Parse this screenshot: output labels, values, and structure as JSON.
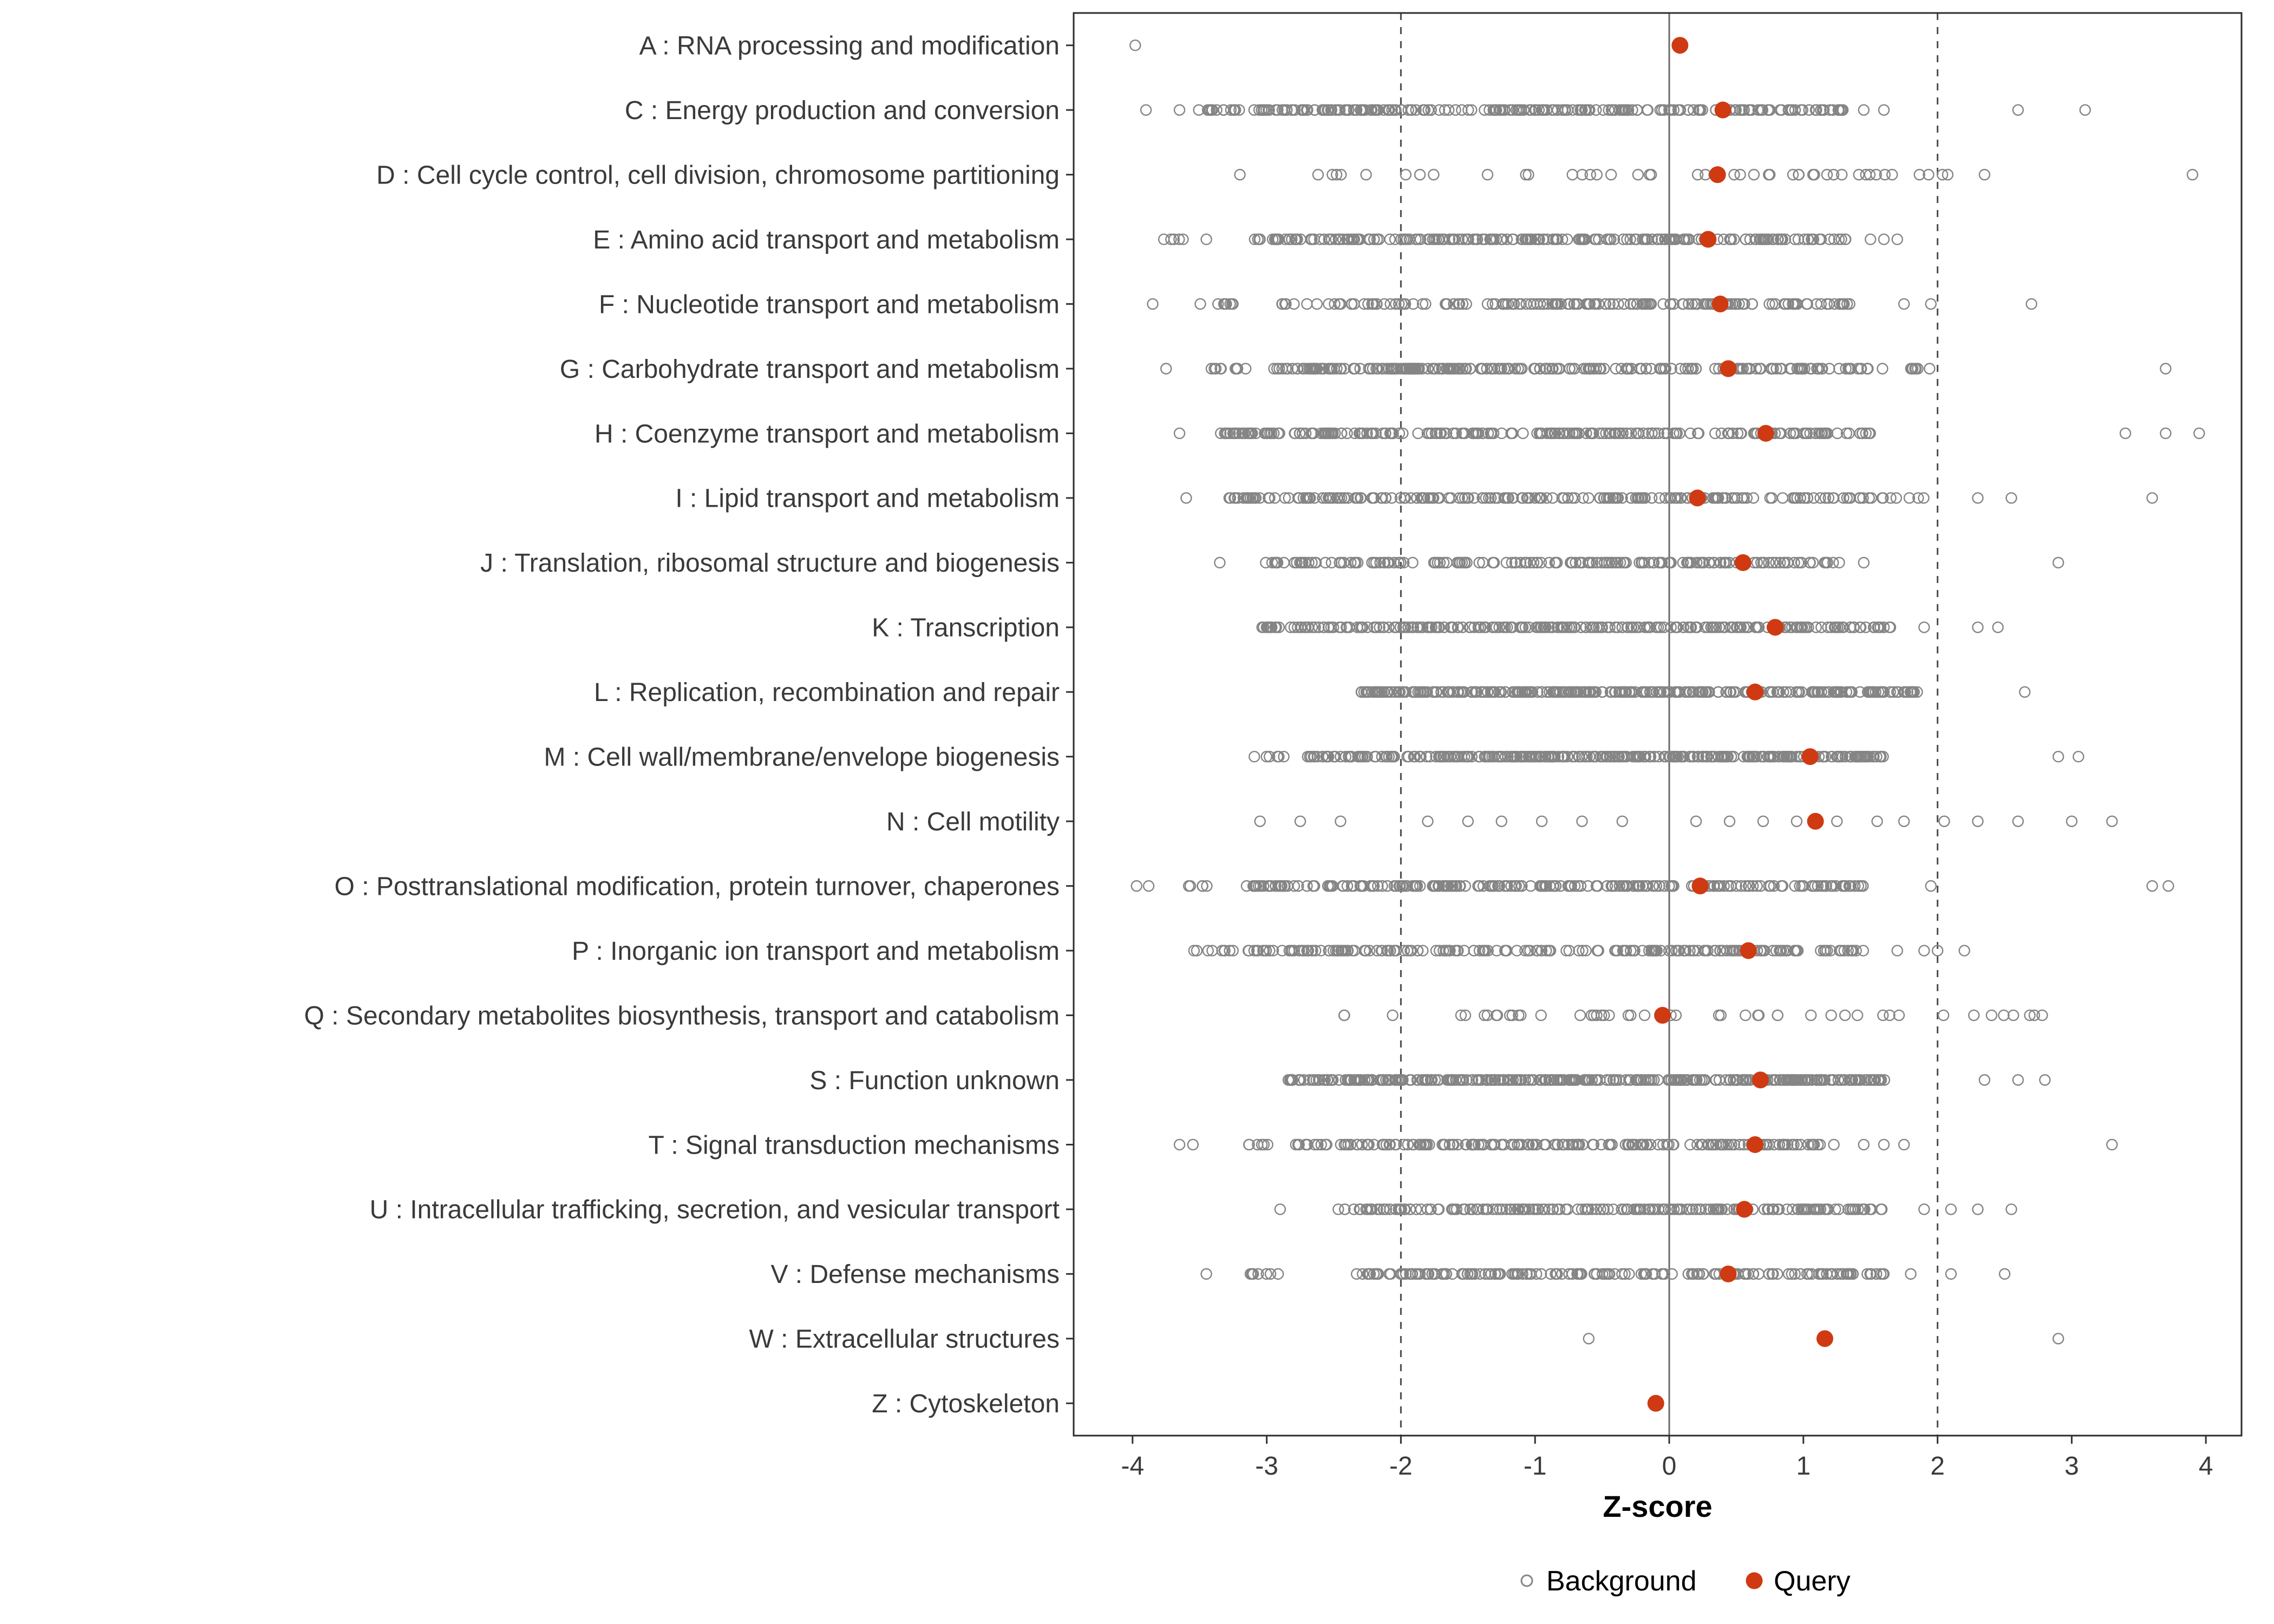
{
  "figure": {
    "xlabel": "Z-score",
    "legend": {
      "background_label": "Background",
      "query_label": "Query"
    }
  },
  "chart_data": {
    "type": "scatter",
    "title": "",
    "xlabel": "Z-score",
    "ylabel": "",
    "xlim": [
      -4.45,
      4.27
    ],
    "x_ticks": [
      -4,
      -3,
      -2,
      -1,
      0,
      1,
      2,
      3,
      4
    ],
    "grid": false,
    "reference_lines": {
      "solid": [
        0
      ],
      "dashed": [
        -2,
        2
      ]
    },
    "legend_position": "bottom",
    "legend": [
      {
        "label": "Background",
        "marker": "open-circle",
        "color": "#858585"
      },
      {
        "label": "Query",
        "marker": "filled-circle",
        "color": "#cf3a13"
      }
    ],
    "colors": {
      "background_marker": "#858585",
      "query_marker": "#cf3a13",
      "dashed_line": "#4d4d4d",
      "zero_line": "#6b6b6b",
      "panel_border": "#2b2b2b",
      "axis_text": "#3a3a3a",
      "tick_mark": "#333333",
      "label_text": "#000000"
    },
    "categories": [
      {
        "code": "A",
        "label": "A : RNA processing and modification",
        "query_z": 0.08,
        "background": {
          "dense_ranges": [],
          "points": [
            -3.98
          ]
        }
      },
      {
        "code": "C",
        "label": "C : Energy production and conversion",
        "query_z": 0.4,
        "background": {
          "dense_ranges": [
            {
              "from": -3.55,
              "to": -3.2,
              "approx_count": 14
            },
            {
              "from": -3.1,
              "to": 1.3,
              "approx_count": 240
            }
          ],
          "points": [
            -3.9,
            -3.65,
            1.45,
            1.6,
            2.6,
            3.1
          ]
        }
      },
      {
        "code": "D",
        "label": "D : Cell cycle control, cell division, chromosome partitioning",
        "query_z": 0.36,
        "background": {
          "dense_ranges": [
            {
              "from": -2.7,
              "to": 2.1,
              "approx_count": 46
            }
          ],
          "points": [
            -3.2,
            2.35,
            3.9
          ]
        }
      },
      {
        "code": "E",
        "label": "E : Amino acid transport and metabolism",
        "query_z": 0.29,
        "background": {
          "dense_ranges": [
            {
              "from": -3.88,
              "to": -3.6,
              "approx_count": 5
            },
            {
              "from": -3.1,
              "to": 1.15,
              "approx_count": 230
            },
            {
              "from": 1.15,
              "to": 1.35,
              "approx_count": 6
            }
          ],
          "points": [
            -3.45,
            1.5,
            1.6,
            1.7
          ]
        }
      },
      {
        "code": "F",
        "label": "F : Nucleotide transport and metabolism",
        "query_z": 0.38,
        "background": {
          "dense_ranges": [
            {
              "from": -3.5,
              "to": -3.25,
              "approx_count": 8
            },
            {
              "from": -2.95,
              "to": 1.4,
              "approx_count": 170
            }
          ],
          "points": [
            -3.85,
            1.75,
            1.95,
            2.7
          ]
        }
      },
      {
        "code": "G",
        "label": "G : Carbohydrate transport and metabolism",
        "query_z": 0.44,
        "background": {
          "dense_ranges": [
            {
              "from": -3.45,
              "to": -3.15,
              "approx_count": 10
            },
            {
              "from": -3.0,
              "to": 1.5,
              "approx_count": 240
            },
            {
              "from": 1.55,
              "to": 1.95,
              "approx_count": 8
            }
          ],
          "points": [
            -3.75,
            3.7
          ]
        }
      },
      {
        "code": "H",
        "label": "H : Coenzyme transport and metabolism",
        "query_z": 0.72,
        "background": {
          "dense_ranges": [
            {
              "from": -3.35,
              "to": 1.5,
              "approx_count": 220
            }
          ],
          "points": [
            -3.65,
            3.4,
            3.7,
            3.95
          ]
        }
      },
      {
        "code": "I",
        "label": "I : Lipid transport and metabolism",
        "query_z": 0.21,
        "background": {
          "dense_ranges": [
            {
              "from": -3.3,
              "to": 1.6,
              "approx_count": 210
            },
            {
              "from": 1.65,
              "to": 1.9,
              "approx_count": 5
            }
          ],
          "points": [
            -3.6,
            2.3,
            2.55,
            3.6
          ]
        }
      },
      {
        "code": "J",
        "label": "J : Translation, ribosomal structure and biogenesis",
        "query_z": 0.55,
        "background": {
          "dense_ranges": [
            {
              "from": -3.05,
              "to": 1.3,
              "approx_count": 175
            }
          ],
          "points": [
            -3.35,
            1.45,
            2.9
          ]
        }
      },
      {
        "code": "K",
        "label": "K : Transcription",
        "query_z": 0.79,
        "background": {
          "dense_ranges": [
            {
              "from": -3.05,
              "to": 1.65,
              "approx_count": 260
            }
          ],
          "points": [
            1.9,
            2.3,
            2.45
          ]
        }
      },
      {
        "code": "L",
        "label": "L : Replication, recombination and repair",
        "query_z": 0.64,
        "background": {
          "dense_ranges": [
            {
              "from": -2.3,
              "to": 1.85,
              "approx_count": 300
            }
          ],
          "points": [
            2.65
          ]
        }
      },
      {
        "code": "M",
        "label": "M : Cell wall/membrane/envelope biogenesis",
        "query_z": 1.05,
        "background": {
          "dense_ranges": [
            {
              "from": -3.1,
              "to": -2.85,
              "approx_count": 6
            },
            {
              "from": -2.7,
              "to": 1.6,
              "approx_count": 320
            }
          ],
          "points": [
            2.9,
            3.05
          ]
        }
      },
      {
        "code": "N",
        "label": "N : Cell motility",
        "query_z": 1.09,
        "background": {
          "dense_ranges": [],
          "points": [
            -3.05,
            -2.75,
            -2.45,
            -1.8,
            -1.5,
            -1.25,
            -0.95,
            -0.65,
            -0.35,
            0.2,
            0.45,
            0.7,
            0.95,
            1.25,
            1.55,
            1.75,
            2.05,
            2.3,
            2.6,
            3.0,
            3.3
          ]
        }
      },
      {
        "code": "O",
        "label": "O : Posttranslational modification, protein turnover, chaperones",
        "query_z": 0.23,
        "background": {
          "dense_ranges": [
            {
              "from": -3.6,
              "to": -3.35,
              "approx_count": 5
            },
            {
              "from": -3.2,
              "to": 1.45,
              "approx_count": 240
            }
          ],
          "points": [
            -3.97,
            -3.88,
            1.95,
            3.6,
            3.72
          ]
        }
      },
      {
        "code": "P",
        "label": "P : Inorganic ion transport and metabolism",
        "query_z": 0.59,
        "background": {
          "dense_ranges": [
            {
              "from": -3.55,
              "to": -3.25,
              "approx_count": 9
            },
            {
              "from": -3.2,
              "to": 1.45,
              "approx_count": 200
            }
          ],
          "points": [
            1.7,
            1.9,
            2.0,
            2.2
          ]
        }
      },
      {
        "code": "Q",
        "label": "Q : Secondary metabolites biosynthesis, transport and catabolism",
        "query_z": -0.05,
        "background": {
          "dense_ranges": [
            {
              "from": -2.5,
              "to": 2.9,
              "approx_count": 48
            }
          ],
          "points": []
        }
      },
      {
        "code": "S",
        "label": "S : Function unknown",
        "query_z": 0.68,
        "background": {
          "dense_ranges": [
            {
              "from": -2.85,
              "to": 1.65,
              "approx_count": 340
            }
          ],
          "points": [
            2.35,
            2.6,
            2.8
          ]
        }
      },
      {
        "code": "T",
        "label": "T : Signal transduction mechanisms",
        "query_z": 0.64,
        "background": {
          "dense_ranges": [
            {
              "from": -3.2,
              "to": -2.95,
              "approx_count": 6
            },
            {
              "from": -2.8,
              "to": 1.25,
              "approx_count": 190
            }
          ],
          "points": [
            -3.65,
            -3.55,
            1.45,
            1.6,
            1.75,
            3.3
          ]
        }
      },
      {
        "code": "U",
        "label": "U : Intracellular trafficking, secretion, and vesicular transport",
        "query_z": 0.56,
        "background": {
          "dense_ranges": [
            {
              "from": -2.5,
              "to": 1.65,
              "approx_count": 200
            }
          ],
          "points": [
            -2.9,
            1.9,
            2.1,
            2.3,
            2.55
          ]
        }
      },
      {
        "code": "V",
        "label": "V : Defense mechanisms",
        "query_z": 0.44,
        "background": {
          "dense_ranges": [
            {
              "from": -3.2,
              "to": -2.9,
              "approx_count": 8
            },
            {
              "from": -2.4,
              "to": 1.6,
              "approx_count": 170
            }
          ],
          "points": [
            -3.45,
            1.8,
            2.1,
            2.5
          ]
        }
      },
      {
        "code": "W",
        "label": "W : Extracellular structures",
        "query_z": 1.16,
        "background": {
          "dense_ranges": [],
          "points": [
            -0.6,
            2.9
          ]
        }
      },
      {
        "code": "Z",
        "label": "Z : Cytoskeleton",
        "query_z": -0.1,
        "background": {
          "dense_ranges": [],
          "points": []
        }
      }
    ]
  }
}
